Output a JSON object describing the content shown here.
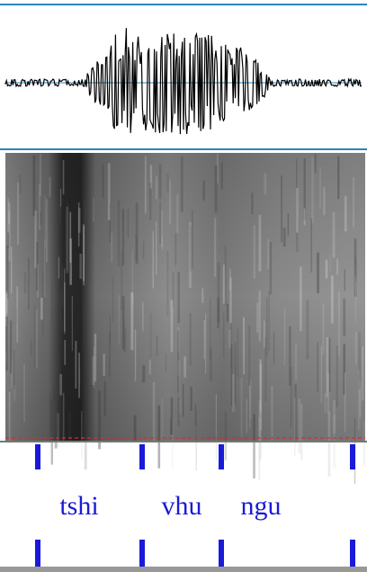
{
  "tier": {
    "labels": [
      "tshi",
      "vhu",
      "ngu"
    ]
  }
}
